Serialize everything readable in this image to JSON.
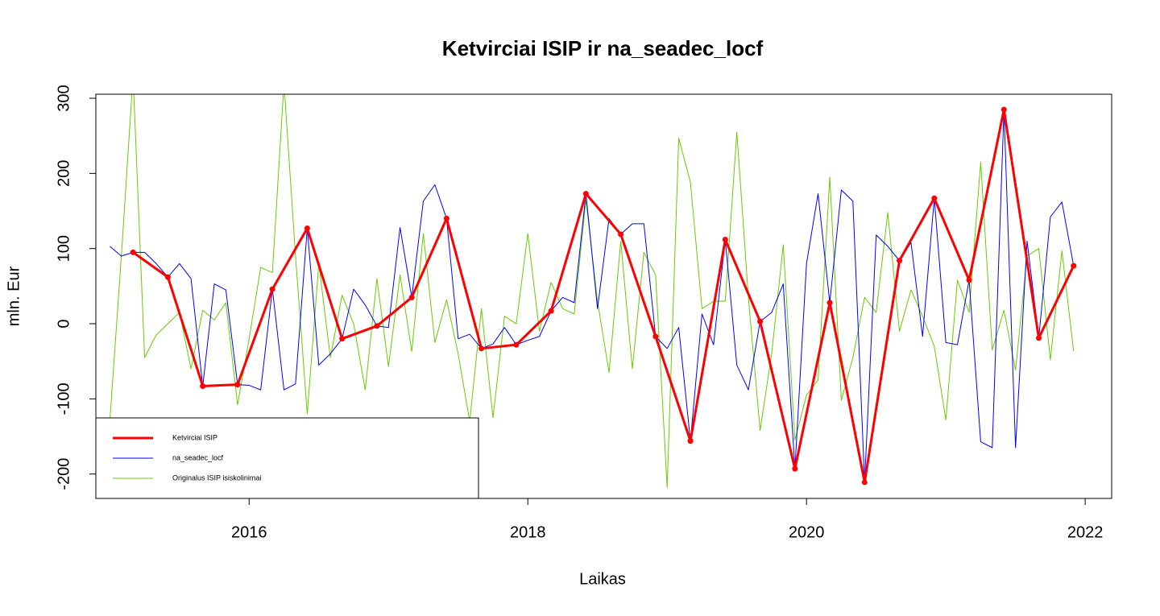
{
  "chart_data": {
    "type": "line",
    "title": "Ketvirciai ISIP ir na_seadec_locf",
    "x_label": "Laikas",
    "y_label": "mln. Eur",
    "xlim": [
      2014.9,
      2022.19
    ],
    "xticks": [
      2016,
      2018,
      2020,
      2022
    ],
    "ylim": [
      -232.5,
      305.4
    ],
    "yticks": [
      -200,
      -100,
      0,
      100,
      200,
      300
    ],
    "legend": "bottomleft",
    "x": [
      2015,
      2015.083,
      2015.167,
      2015.25,
      2015.333,
      2015.417,
      2015.5,
      2015.583,
      2015.667,
      2015.75,
      2015.833,
      2015.917,
      2016,
      2016.083,
      2016.167,
      2016.25,
      2016.333,
      2016.417,
      2016.5,
      2016.583,
      2016.667,
      2016.75,
      2016.833,
      2016.917,
      2017,
      2017.083,
      2017.167,
      2017.25,
      2017.333,
      2017.417,
      2017.5,
      2017.583,
      2017.667,
      2017.75,
      2017.833,
      2017.917,
      2018,
      2018.083,
      2018.167,
      2018.25,
      2018.333,
      2018.417,
      2018.5,
      2018.583,
      2018.667,
      2018.75,
      2018.833,
      2018.917,
      2019,
      2019.083,
      2019.167,
      2019.25,
      2019.333,
      2019.417,
      2019.5,
      2019.583,
      2019.667,
      2019.75,
      2019.833,
      2019.917,
      2020,
      2020.083,
      2020.167,
      2020.25,
      2020.333,
      2020.417,
      2020.5,
      2020.583,
      2020.667,
      2020.75,
      2020.833,
      2020.917,
      2021,
      2021.083,
      2021.167,
      2021.25,
      2021.333,
      2021.417,
      2021.5,
      2021.583,
      2021.667,
      2021.75,
      2021.833,
      2021.917
    ],
    "series": [
      {
        "name": "Ketvirciai ISIP",
        "color": "#ff0000",
        "width": 3,
        "points": true,
        "x": [
          2015.167,
          2015.417,
          2015.667,
          2015.917,
          2016.167,
          2016.417,
          2016.667,
          2016.917,
          2017.167,
          2017.417,
          2017.667,
          2017.917,
          2018.167,
          2018.417,
          2018.667,
          2018.917,
          2019.167,
          2019.417,
          2019.667,
          2019.917,
          2020.167,
          2020.417,
          2020.667,
          2020.917,
          2021.167,
          2021.417,
          2021.667,
          2021.917
        ],
        "values": [
          95,
          62,
          -83,
          -81,
          46,
          127,
          -20,
          -3,
          35,
          140,
          -33,
          -28,
          17,
          173,
          119,
          -17,
          -156,
          112,
          3,
          -193,
          28,
          -211,
          84,
          167,
          58,
          285,
          -19,
          77
        ]
      },
      {
        "name": "na_seadec_locf",
        "color": "#0000ff",
        "width": 1,
        "values": [
          103,
          90,
          95,
          95,
          80,
          62,
          80,
          60,
          -83,
          53,
          45,
          -81,
          -82,
          -88,
          46,
          -88,
          -80,
          127,
          -55,
          -40,
          -20,
          46,
          25,
          -3,
          -5,
          128,
          35,
          163,
          185,
          140,
          -20,
          -14,
          -33,
          -27,
          -5,
          -28,
          -22,
          -17,
          17,
          35,
          28,
          173,
          20,
          140,
          119,
          133,
          133,
          -17,
          -33,
          -5,
          -156,
          13,
          -28,
          112,
          -55,
          -88,
          3,
          15,
          53,
          -193,
          80,
          173,
          28,
          178,
          163,
          -211,
          118,
          103,
          84,
          108,
          -17,
          167,
          -25,
          -28,
          58,
          -157,
          -165,
          285,
          -165,
          110,
          -19,
          142,
          162,
          77
        ]
      },
      {
        "name": "Originalus ISIP isiskolinimai",
        "color": "#66cc00",
        "width": 1,
        "values": [
          -130,
          90,
          330,
          -45,
          -15,
          0,
          15,
          -60,
          18,
          5,
          28,
          -108,
          -20,
          75,
          68,
          320,
          90,
          -120,
          80,
          -45,
          38,
          0,
          -88,
          60,
          -57,
          65,
          -37,
          120,
          -25,
          32,
          -40,
          -130,
          20,
          -125,
          10,
          0,
          120,
          -10,
          55,
          20,
          13,
          165,
          30,
          -65,
          110,
          -60,
          95,
          65,
          -218,
          247,
          188,
          20,
          30,
          30,
          255,
          35,
          -142,
          -40,
          105,
          -155,
          -95,
          -75,
          195,
          -102,
          -45,
          35,
          15,
          148,
          -10,
          45,
          10,
          -30,
          -128,
          58,
          15,
          215,
          -35,
          18,
          -62,
          90,
          100,
          -48,
          97,
          -37
        ]
      }
    ]
  }
}
